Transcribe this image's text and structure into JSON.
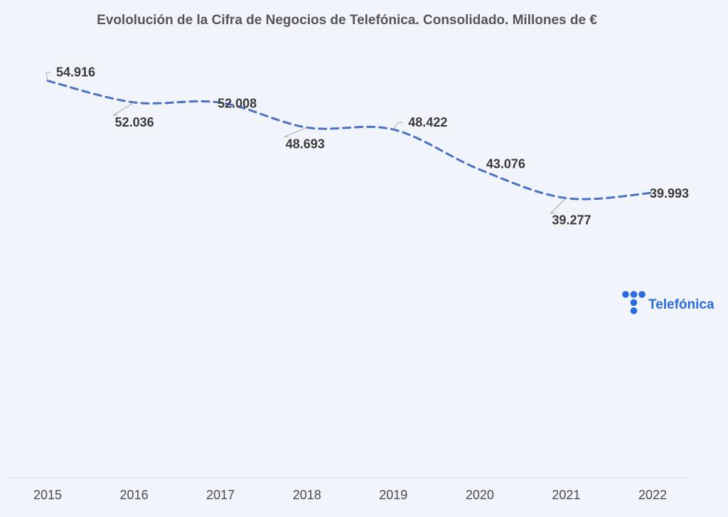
{
  "chart_data": {
    "type": "line",
    "title": "Evololución de la Cifra de Negocios de Telefónica. Consolidado. Millones de €",
    "categories": [
      "2015",
      "2016",
      "2017",
      "2018",
      "2019",
      "2020",
      "2021",
      "2022"
    ],
    "values": [
      54916,
      52036,
      52008,
      48693,
      48422,
      43076,
      39277,
      39993
    ],
    "value_labels": [
      "54.916",
      "52.036",
      "52.008",
      "48.693",
      "48.422",
      "43.076",
      "39.277",
      "39.993"
    ],
    "xlabel": "",
    "ylabel": "",
    "ylim": [
      33000,
      59000
    ],
    "grid": false,
    "line_style": "dashed",
    "line_color": "#4a72c4"
  },
  "logo": {
    "text": "Telefónica",
    "color": "#2a6be0"
  }
}
